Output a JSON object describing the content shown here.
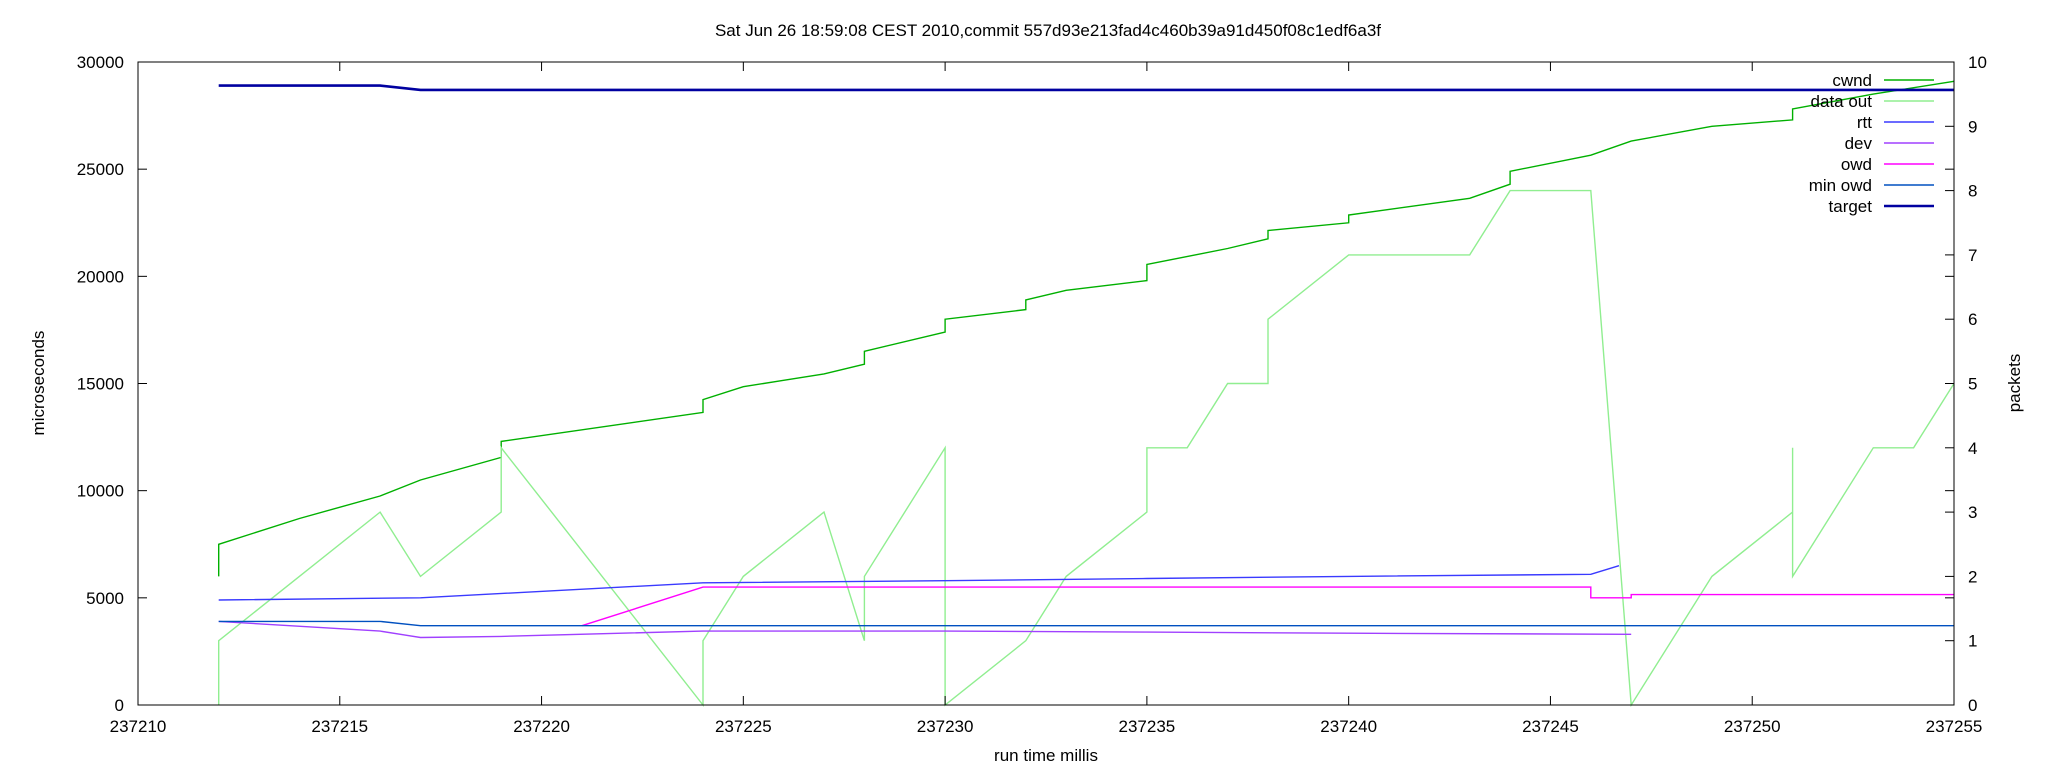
{
  "chart_data": {
    "type": "line",
    "title": "Sat Jun 26 18:59:08 CEST 2010,commit 557d93e213fad4c460b39a91d450f08c1edf6a3f",
    "xlabel": "run time millis",
    "ylabel": "microseconds",
    "y2label": "packets",
    "xlim": [
      237210,
      237255
    ],
    "ylim": [
      0,
      30000
    ],
    "y2lim": [
      0,
      10
    ],
    "xticks": [
      "237210",
      "237215",
      "237220",
      "237225",
      "237230",
      "237235",
      "237240",
      "237245",
      "237250",
      "237255"
    ],
    "yticks": [
      "0",
      "5000",
      "10000",
      "15000",
      "20000",
      "25000",
      "30000"
    ],
    "y2ticks": [
      "0",
      "1",
      "2",
      "3",
      "4",
      "5",
      "6",
      "7",
      "8",
      "9",
      "10"
    ],
    "grid": false,
    "legend_position": "top-right",
    "series": [
      {
        "name": "cwnd",
        "axis": "y2",
        "color": "#00b000",
        "points": [
          [
            237212,
            2.0
          ],
          [
            237212,
            2.5
          ],
          [
            237214,
            2.9
          ],
          [
            237216,
            3.25
          ],
          [
            237217,
            3.5
          ],
          [
            237219,
            3.85
          ],
          [
            237219,
            4.1
          ],
          [
            237224,
            4.55
          ],
          [
            237224,
            4.75
          ],
          [
            237225,
            4.95
          ],
          [
            237227,
            5.15
          ],
          [
            237228,
            5.3
          ],
          [
            237228,
            5.5
          ],
          [
            237230,
            5.8
          ],
          [
            237230,
            6.0
          ],
          [
            237232,
            6.15
          ],
          [
            237232,
            6.3
          ],
          [
            237233,
            6.45
          ],
          [
            237235,
            6.6
          ],
          [
            237235,
            6.85
          ],
          [
            237237,
            7.1
          ],
          [
            237238,
            7.25
          ],
          [
            237238,
            7.38
          ],
          [
            237240,
            7.5
          ],
          [
            237240,
            7.62
          ],
          [
            237243,
            7.88
          ],
          [
            237244,
            8.1
          ],
          [
            237244,
            8.3
          ],
          [
            237246,
            8.55
          ],
          [
            237247,
            8.77
          ],
          [
            237249,
            9.0
          ],
          [
            237251,
            9.1
          ],
          [
            237251,
            9.27
          ],
          [
            237253,
            9.5
          ],
          [
            237255,
            9.7
          ]
        ]
      },
      {
        "name": "data out",
        "axis": "y2",
        "color": "#90ee90",
        "points": [
          [
            237212,
            0
          ],
          [
            237212,
            1
          ],
          [
            237216,
            3
          ],
          [
            237217,
            2
          ],
          [
            237219,
            3
          ],
          [
            237219,
            4
          ],
          [
            237224,
            0
          ],
          [
            237224,
            1
          ],
          [
            237225,
            2
          ],
          [
            237227,
            3
          ],
          [
            237228,
            1
          ],
          [
            237228,
            2
          ],
          [
            237230,
            4
          ],
          [
            237230,
            0
          ],
          [
            237232,
            1
          ],
          [
            237233,
            2
          ],
          [
            237235,
            3
          ],
          [
            237235,
            4
          ],
          [
            237236,
            4
          ],
          [
            237237,
            5
          ],
          [
            237238,
            5
          ],
          [
            237238,
            6
          ],
          [
            237240,
            7
          ],
          [
            237243,
            7
          ],
          [
            237244,
            8
          ],
          [
            237246,
            8
          ],
          [
            237247,
            0
          ],
          [
            237249,
            2
          ],
          [
            237251,
            3
          ],
          [
            237251,
            4
          ],
          [
            237251,
            2
          ],
          [
            237253,
            4
          ],
          [
            237254,
            4
          ],
          [
            237255,
            5
          ]
        ]
      },
      {
        "name": "rtt",
        "axis": "y1",
        "color": "#3a3aff",
        "points": [
          [
            237212,
            4900
          ],
          [
            237217,
            5000
          ],
          [
            237224,
            5700
          ],
          [
            237230,
            5800
          ],
          [
            237235,
            5900
          ],
          [
            237240,
            6000
          ],
          [
            237246,
            6100
          ],
          [
            237246.7,
            6500
          ]
        ]
      },
      {
        "name": "dev",
        "axis": "y1",
        "color": "#a040ff",
        "points": [
          [
            237212,
            3900
          ],
          [
            237216,
            3450
          ],
          [
            237217,
            3150
          ],
          [
            237219,
            3200
          ],
          [
            237224,
            3450
          ],
          [
            237230,
            3450
          ],
          [
            237235,
            3400
          ],
          [
            237240,
            3350
          ],
          [
            237247,
            3300
          ]
        ]
      },
      {
        "name": "owd",
        "axis": "y1",
        "color": "#ff00ff",
        "points": [
          [
            237221,
            3700
          ],
          [
            237224,
            5500
          ],
          [
            237246,
            5500
          ],
          [
            237246,
            5000
          ],
          [
            237247,
            5000
          ],
          [
            237247,
            5150
          ],
          [
            237255,
            5150
          ]
        ]
      },
      {
        "name": "min owd",
        "axis": "y1",
        "color": "#0050c0",
        "points": [
          [
            237212,
            3900
          ],
          [
            237216,
            3900
          ],
          [
            237217,
            3700
          ],
          [
            237255,
            3700
          ]
        ]
      },
      {
        "name": "target",
        "axis": "y1",
        "color": "#0000a0",
        "points": [
          [
            237212,
            28900
          ],
          [
            237216,
            28900
          ],
          [
            237217,
            28700
          ],
          [
            237255,
            28700
          ]
        ]
      }
    ]
  }
}
